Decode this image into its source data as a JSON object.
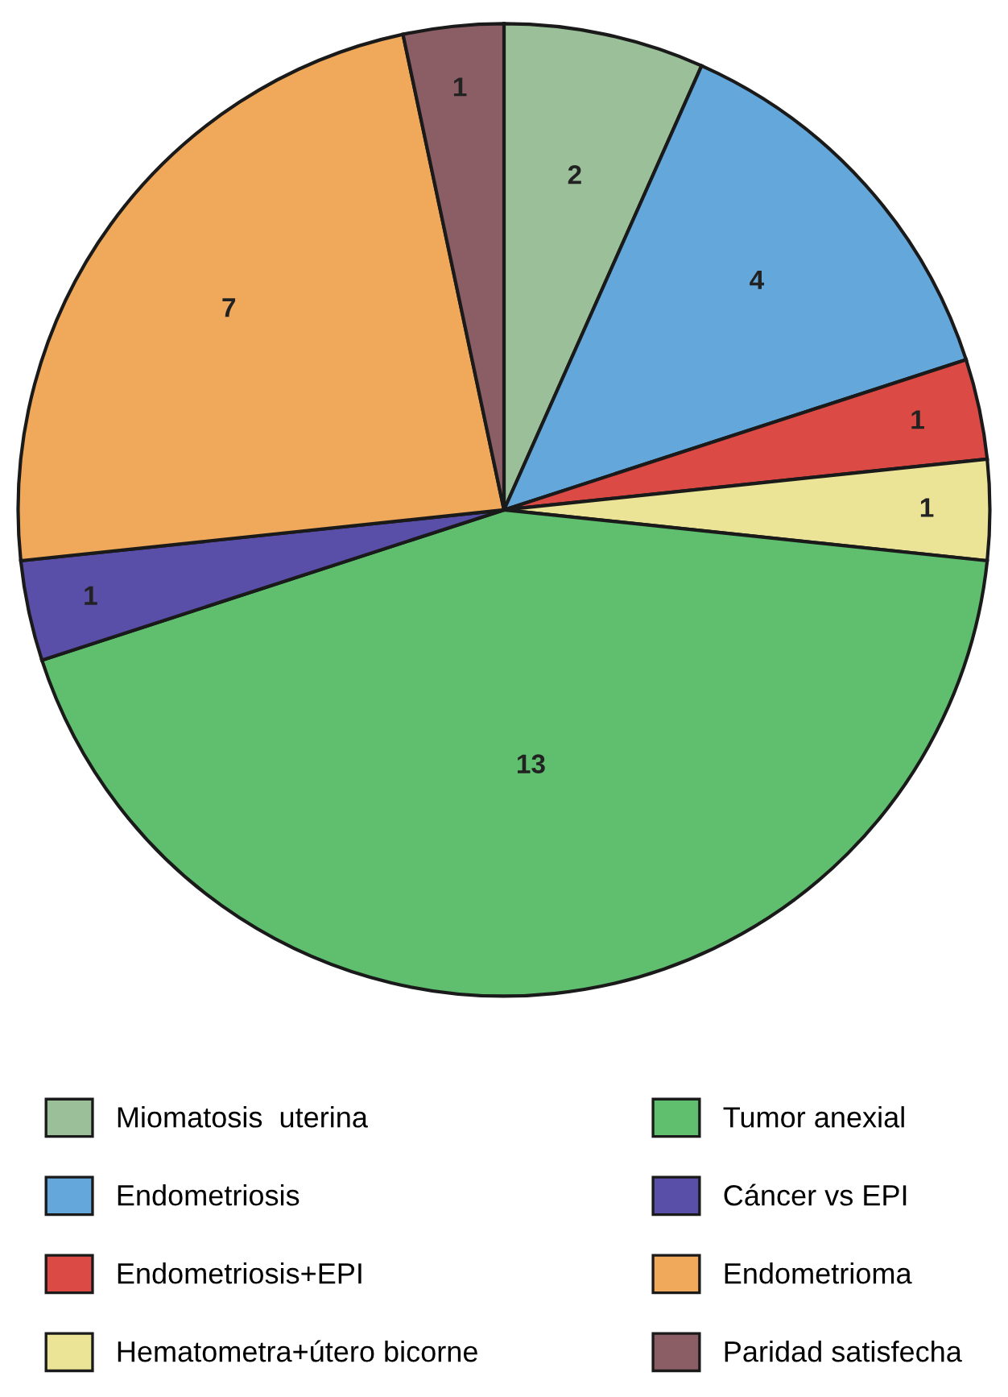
{
  "chart_data": {
    "type": "pie",
    "categories": [
      "Miomatosis  uterina",
      "Endometriosis",
      "Endometriosis+EPI",
      "Hematometra+útero bicorne",
      "Tumor anexial",
      "Cáncer vs EPI",
      "Endometrioma",
      "Paridad satisfecha"
    ],
    "values": [
      2,
      4,
      1,
      1,
      13,
      1,
      7,
      1
    ],
    "colors": [
      "#9bbf98",
      "#64a7db",
      "#dc4a46",
      "#ebe497",
      "#5fbf6f",
      "#5a4fa8",
      "#f0a85a",
      "#8b5e66"
    ],
    "data_labels": true,
    "legend": "bottom"
  }
}
